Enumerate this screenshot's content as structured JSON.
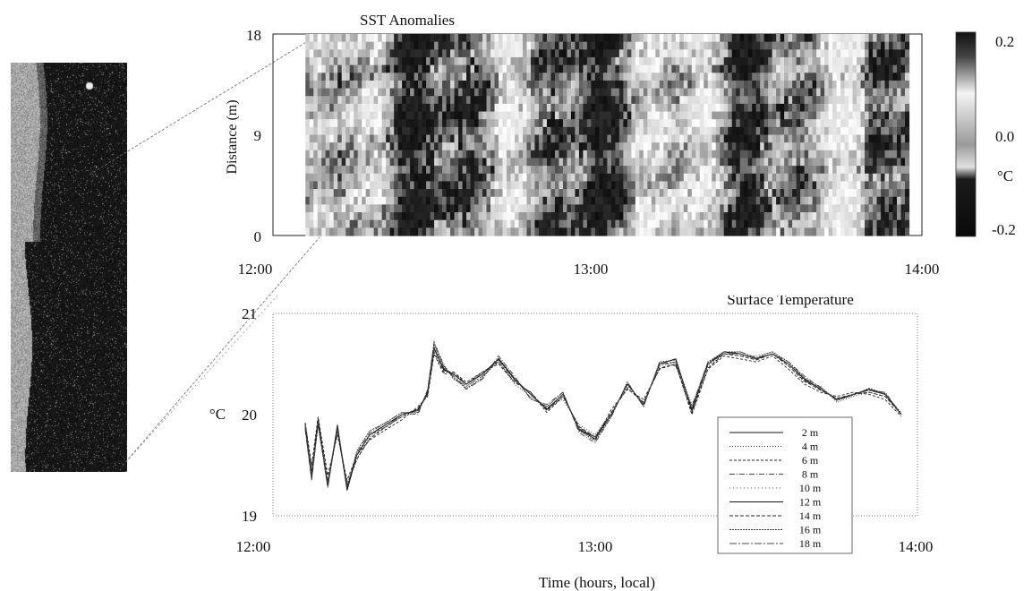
{
  "chart_data": [
    {
      "type": "heatmap",
      "title": "SST Anomalies",
      "ylabel": "Distance (m)",
      "xlabel": "",
      "x_ticks": [
        "12:00",
        "13:00",
        "14:00"
      ],
      "y_ticks": [
        "0",
        "9",
        "18"
      ],
      "ylim": [
        0,
        18
      ],
      "xlim_hours": [
        12.0,
        14.0
      ],
      "data_start_hour": 12.1,
      "data_end_hour": 13.96,
      "colorbar": {
        "ticks": [
          "0.2",
          "0.0",
          "-0.2"
        ],
        "unit_label": "°C",
        "range": [
          -0.2,
          0.2
        ],
        "colors": [
          "#111111",
          "#ffffff"
        ]
      }
    },
    {
      "type": "line",
      "title": "Surface Temperature",
      "ylabel": "°C",
      "xlabel": "Time (hours, local)",
      "x_ticks": [
        "12:00",
        "13:00",
        "14:00"
      ],
      "y_ticks": [
        "19",
        "20",
        "21"
      ],
      "ylim": [
        19,
        21
      ],
      "xlim_hours": [
        12.0,
        14.0
      ],
      "legend_placement": "lower-right",
      "x_hours": [
        12.1,
        12.12,
        12.14,
        12.17,
        12.2,
        12.23,
        12.26,
        12.3,
        12.35,
        12.4,
        12.45,
        12.48,
        12.5,
        12.53,
        12.56,
        12.6,
        12.65,
        12.7,
        12.75,
        12.8,
        12.85,
        12.9,
        12.95,
        13.0,
        13.05,
        13.1,
        13.15,
        13.2,
        13.25,
        13.3,
        13.35,
        13.4,
        13.45,
        13.5,
        13.55,
        13.6,
        13.65,
        13.7,
        13.75,
        13.8,
        13.85,
        13.9,
        13.95
      ],
      "series": [
        {
          "name": "2 m",
          "values": [
            19.9,
            19.4,
            19.95,
            19.3,
            19.9,
            19.25,
            19.6,
            19.8,
            19.9,
            20.0,
            20.05,
            20.2,
            20.65,
            20.45,
            20.4,
            20.3,
            20.4,
            20.55,
            20.35,
            20.2,
            20.05,
            20.2,
            19.85,
            19.78,
            20.0,
            20.3,
            20.1,
            20.5,
            20.55,
            20.05,
            20.5,
            20.62,
            20.6,
            20.55,
            20.6,
            20.5,
            20.35,
            20.25,
            20.15,
            20.2,
            20.25,
            20.2,
            20.0
          ]
        },
        {
          "name": "4 m",
          "values": [
            19.88,
            19.45,
            19.9,
            19.35,
            19.85,
            19.3,
            19.55,
            19.78,
            19.88,
            19.98,
            20.02,
            20.22,
            20.7,
            20.5,
            20.35,
            20.28,
            20.38,
            20.52,
            20.3,
            20.18,
            20.08,
            20.15,
            19.9,
            19.8,
            20.02,
            20.28,
            20.12,
            20.48,
            20.52,
            20.1,
            20.48,
            20.6,
            20.58,
            20.58,
            20.62,
            20.48,
            20.32,
            20.28,
            20.12,
            20.18,
            20.22,
            20.18,
            20.02
          ]
        },
        {
          "name": "6 m",
          "values": [
            19.92,
            19.5,
            19.98,
            19.4,
            19.8,
            19.35,
            19.6,
            19.75,
            19.85,
            19.95,
            20.08,
            20.18,
            20.6,
            20.4,
            20.42,
            20.32,
            20.42,
            20.5,
            20.32,
            20.22,
            20.02,
            20.18,
            19.88,
            19.75,
            20.05,
            20.25,
            20.15,
            20.45,
            20.5,
            20.0,
            20.45,
            20.58,
            20.55,
            20.52,
            20.58,
            20.45,
            20.3,
            20.22,
            20.18,
            20.22,
            20.2,
            20.15,
            19.98
          ]
        },
        {
          "name": "8 m",
          "values": [
            19.85,
            19.35,
            19.92,
            19.28,
            19.88,
            19.28,
            19.62,
            19.82,
            19.92,
            20.02,
            20.0,
            20.25,
            20.72,
            20.48,
            20.38,
            20.25,
            20.35,
            20.58,
            20.38,
            20.15,
            20.1,
            20.22,
            19.82,
            19.72,
            19.98,
            20.32,
            20.08,
            20.52,
            20.48,
            20.08,
            20.52,
            20.6,
            20.62,
            20.56,
            20.6,
            20.52,
            20.38,
            20.26,
            20.14,
            20.2,
            20.24,
            20.22,
            20.0
          ]
        },
        {
          "name": "10 m",
          "values": [
            19.9,
            19.42,
            19.88,
            19.32,
            19.82,
            19.32,
            19.58,
            19.8,
            19.86,
            20.0,
            20.06,
            20.2,
            20.68,
            20.46,
            20.4,
            20.3,
            20.4,
            20.54,
            20.34,
            20.2,
            20.06,
            20.2,
            19.86,
            19.78,
            20.0,
            20.3,
            20.1,
            20.5,
            20.52,
            20.06,
            20.5,
            20.6,
            20.6,
            20.55,
            20.6,
            20.5,
            20.35,
            20.25,
            20.16,
            20.2,
            20.24,
            20.2,
            20.0
          ]
        },
        {
          "name": "12 m",
          "values": [
            19.88,
            19.38,
            19.94,
            19.3,
            19.86,
            19.26,
            19.6,
            19.8,
            19.9,
            20.0,
            20.04,
            20.22,
            20.66,
            20.44,
            20.4,
            20.3,
            20.4,
            20.55,
            20.35,
            20.2,
            20.05,
            20.2,
            19.85,
            19.76,
            20.0,
            20.3,
            20.1,
            20.5,
            20.55,
            20.04,
            20.5,
            20.62,
            20.6,
            20.55,
            20.6,
            20.5,
            20.35,
            20.25,
            20.15,
            20.2,
            20.25,
            20.2,
            20.0
          ]
        },
        {
          "name": "14 m",
          "values": [
            19.92,
            19.44,
            19.96,
            19.34,
            19.84,
            19.3,
            19.56,
            19.76,
            19.88,
            19.98,
            20.06,
            20.2,
            20.62,
            20.42,
            20.42,
            20.3,
            20.42,
            20.52,
            20.32,
            20.22,
            20.04,
            20.18,
            19.88,
            19.78,
            20.02,
            20.26,
            20.12,
            20.46,
            20.5,
            20.02,
            20.46,
            20.6,
            20.58,
            20.54,
            20.6,
            20.48,
            20.33,
            20.24,
            20.16,
            20.2,
            20.22,
            20.18,
            20.0
          ]
        },
        {
          "name": "16 m",
          "values": [
            19.86,
            19.36,
            19.9,
            19.28,
            19.9,
            19.26,
            19.64,
            19.84,
            19.92,
            20.02,
            20.02,
            20.24,
            20.7,
            20.48,
            20.36,
            20.26,
            20.36,
            20.56,
            20.36,
            20.16,
            20.08,
            20.22,
            19.84,
            19.74,
            19.98,
            20.32,
            20.08,
            20.52,
            20.54,
            20.06,
            20.52,
            20.62,
            20.62,
            20.56,
            20.62,
            20.52,
            20.36,
            20.27,
            20.14,
            20.19,
            20.26,
            20.21,
            20.01
          ]
        },
        {
          "name": "18 m",
          "values": [
            19.9,
            19.4,
            19.92,
            19.32,
            19.88,
            19.3,
            19.6,
            19.8,
            19.88,
            20.0,
            20.04,
            20.2,
            20.66,
            20.46,
            20.38,
            20.28,
            20.38,
            20.54,
            20.34,
            20.2,
            20.06,
            20.2,
            19.86,
            19.78,
            20.0,
            20.3,
            20.1,
            20.5,
            20.52,
            20.06,
            20.5,
            20.6,
            20.6,
            20.55,
            20.6,
            20.5,
            20.34,
            20.25,
            20.15,
            20.2,
            20.24,
            20.2,
            20.0
          ]
        }
      ]
    }
  ]
}
